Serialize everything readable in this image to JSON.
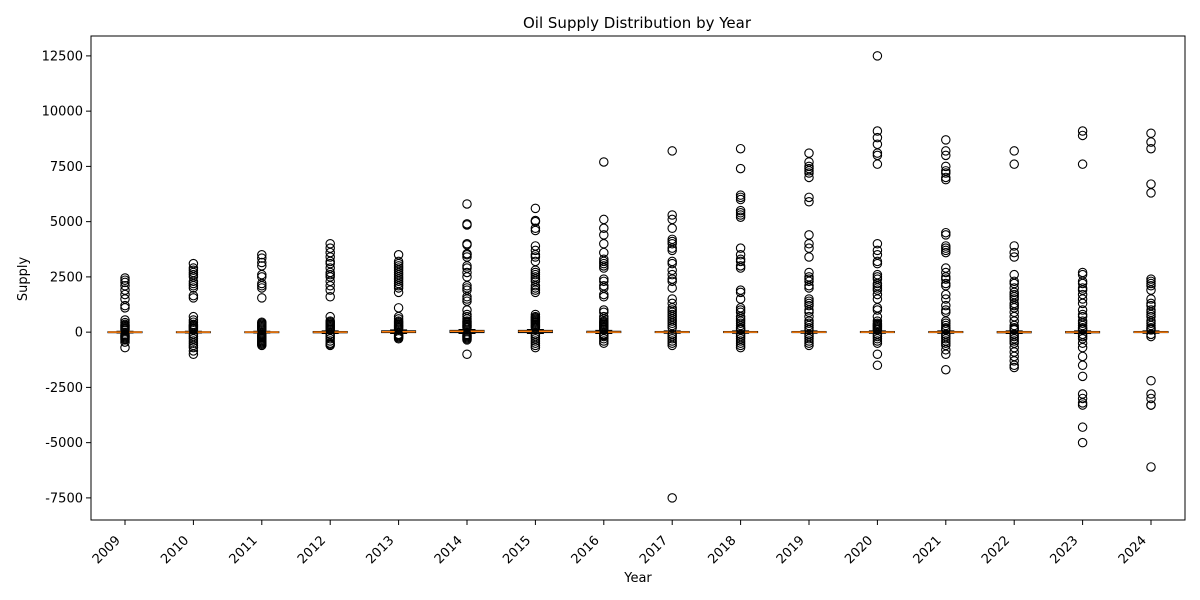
{
  "chart_data": {
    "type": "boxplot",
    "title": "Oil Supply Distribution by Year",
    "xlabel": "Year",
    "ylabel": "Supply",
    "ylim": [
      -8500,
      13400
    ],
    "yticks": [
      -7500,
      -5000,
      -2500,
      0,
      2500,
      5000,
      7500,
      10000,
      12500
    ],
    "grid": false,
    "colors": {
      "median": "#ff7f0e",
      "box": "#000000",
      "flier": "#000000"
    },
    "categories": [
      "2009",
      "2010",
      "2011",
      "2012",
      "2013",
      "2014",
      "2015",
      "2016",
      "2017",
      "2018",
      "2019",
      "2020",
      "2021",
      "2022",
      "2023",
      "2024"
    ],
    "series": [
      {
        "year": "2009",
        "q1": -20,
        "median": 0,
        "q3": 20,
        "whisker_low": -40,
        "whisker_high": 40,
        "fliers": [
          2450,
          2350,
          2250,
          2100,
          1900,
          1700,
          1500,
          1200,
          1100,
          550,
          430,
          350,
          300,
          250,
          200,
          150,
          100,
          -100,
          -150,
          -200,
          -250,
          -300,
          -350,
          -450,
          -700
        ]
      },
      {
        "year": "2010",
        "q1": -20,
        "median": 0,
        "q3": 20,
        "whisker_low": -40,
        "whisker_high": 40,
        "fliers": [
          3100,
          2900,
          2800,
          2700,
          2600,
          2500,
          2300,
          2200,
          2100,
          2000,
          1650,
          1550,
          700,
          550,
          450,
          350,
          300,
          250,
          200,
          150,
          100,
          -100,
          -200,
          -300,
          -400,
          -500,
          -600,
          -700,
          -850,
          -1000
        ]
      },
      {
        "year": "2011",
        "q1": -20,
        "median": 0,
        "q3": 20,
        "whisker_low": -40,
        "whisker_high": 40,
        "fliers": [
          3500,
          3350,
          3150,
          3000,
          2600,
          2500,
          2200,
          2100,
          2000,
          1550,
          450,
          400,
          350,
          300,
          250,
          200,
          150,
          100,
          -100,
          -150,
          -200,
          -250,
          -300,
          -350,
          -400,
          -450,
          -500,
          -550,
          -600
        ]
      },
      {
        "year": "2012",
        "q1": -30,
        "median": 0,
        "q3": 30,
        "whisker_low": -60,
        "whisker_high": 60,
        "fliers": [
          4000,
          3800,
          3600,
          3400,
          3200,
          3100,
          2900,
          2700,
          2600,
          2500,
          2300,
          2100,
          1900,
          1600,
          700,
          500,
          450,
          400,
          350,
          300,
          250,
          200,
          150,
          100,
          -100,
          -200,
          -300,
          -400,
          -500,
          -550,
          -600
        ]
      },
      {
        "year": "2013",
        "q1": -20,
        "median": 20,
        "q3": 60,
        "whisker_low": -60,
        "whisker_high": 100,
        "fliers": [
          3500,
          3200,
          3100,
          3000,
          2900,
          2800,
          2700,
          2600,
          2500,
          2400,
          2300,
          2200,
          2100,
          2000,
          1800,
          1100,
          700,
          600,
          500,
          450,
          400,
          350,
          300,
          250,
          200,
          150,
          -100,
          -150,
          -200,
          -250,
          -300
        ]
      },
      {
        "year": "2014",
        "q1": -20,
        "median": 40,
        "q3": 80,
        "whisker_low": -60,
        "whisker_high": 120,
        "fliers": [
          5800,
          4900,
          4850,
          4000,
          3950,
          3550,
          3500,
          3400,
          3000,
          2900,
          2700,
          2500,
          2100,
          2000,
          1900,
          1600,
          1500,
          1400,
          1000,
          800,
          700,
          600,
          500,
          450,
          400,
          350,
          300,
          250,
          200,
          -100,
          -150,
          -200,
          -250,
          -300,
          -350,
          -1000
        ]
      },
      {
        "year": "2015",
        "q1": -20,
        "median": 40,
        "q3": 80,
        "whisker_low": -60,
        "whisker_high": 120,
        "fliers": [
          5600,
          5050,
          5000,
          4700,
          4600,
          3900,
          3700,
          3500,
          3400,
          3200,
          2800,
          2700,
          2600,
          2500,
          2400,
          2300,
          2100,
          2000,
          1900,
          1800,
          800,
          700,
          650,
          600,
          550,
          500,
          450,
          400,
          350,
          300,
          250,
          200,
          -100,
          -200,
          -300,
          -400,
          -500,
          -600,
          -700
        ]
      },
      {
        "year": "2016",
        "q1": -20,
        "median": 0,
        "q3": 40,
        "whisker_low": -60,
        "whisker_high": 80,
        "fliers": [
          7700,
          5100,
          4700,
          4400,
          4000,
          3600,
          3300,
          3200,
          3100,
          3000,
          2900,
          2400,
          2300,
          2100,
          2000,
          1700,
          1600,
          1000,
          900,
          700,
          600,
          500,
          450,
          400,
          350,
          300,
          250,
          200,
          150,
          100,
          -100,
          -150,
          -200,
          -300,
          -400,
          -500
        ]
      },
      {
        "year": "2017",
        "q1": -20,
        "median": 0,
        "q3": 30,
        "whisker_low": -50,
        "whisker_high": 60,
        "fliers": [
          8200,
          5300,
          5100,
          4700,
          4200,
          4100,
          4000,
          3800,
          3700,
          3200,
          3100,
          2800,
          2600,
          2400,
          2300,
          2000,
          1500,
          1300,
          1100,
          1000,
          900,
          800,
          700,
          600,
          500,
          400,
          300,
          200,
          -100,
          -200,
          -300,
          -400,
          -500,
          -600,
          -7500
        ]
      },
      {
        "year": "2018",
        "q1": -20,
        "median": 0,
        "q3": 30,
        "whisker_low": -50,
        "whisker_high": 60,
        "fliers": [
          8300,
          7400,
          6200,
          6100,
          6000,
          5500,
          5400,
          5300,
          5200,
          3800,
          3500,
          3300,
          3200,
          3000,
          2900,
          1900,
          1800,
          1500,
          1100,
          1000,
          900,
          700,
          600,
          500,
          400,
          300,
          200,
          150,
          100,
          -100,
          -200,
          -300,
          -400,
          -500,
          -600,
          -700
        ]
      },
      {
        "year": "2019",
        "q1": -20,
        "median": 0,
        "q3": 30,
        "whisker_low": -50,
        "whisker_high": 60,
        "fliers": [
          8100,
          7700,
          7500,
          7400,
          7300,
          7200,
          7000,
          6100,
          5900,
          4400,
          4000,
          3800,
          3400,
          2700,
          2500,
          2400,
          2300,
          2100,
          2000,
          1500,
          1400,
          1300,
          1200,
          1000,
          900,
          700,
          500,
          400,
          300,
          200,
          100,
          -100,
          -200,
          -300,
          -400,
          -500,
          -600
        ]
      },
      {
        "year": "2020",
        "q1": -20,
        "median": 0,
        "q3": 30,
        "whisker_low": -50,
        "whisker_high": 60,
        "fliers": [
          12500,
          9100,
          8800,
          8500,
          8100,
          8000,
          7600,
          4000,
          3700,
          3500,
          3200,
          3100,
          2600,
          2500,
          2400,
          2200,
          2100,
          2000,
          1900,
          1700,
          1500,
          1100,
          1000,
          700,
          500,
          400,
          350,
          300,
          250,
          200,
          150,
          100,
          -100,
          -200,
          -300,
          -400,
          -500,
          -1000,
          -1500
        ]
      },
      {
        "year": "2021",
        "q1": -20,
        "median": 0,
        "q3": 30,
        "whisker_low": -50,
        "whisker_high": 60,
        "fliers": [
          8700,
          8200,
          8000,
          7500,
          7300,
          7200,
          7000,
          6900,
          4500,
          4400,
          3900,
          3800,
          3700,
          3600,
          2900,
          2700,
          2500,
          2400,
          2200,
          2100,
          1700,
          1500,
          1200,
          1000,
          900,
          500,
          400,
          300,
          200,
          150,
          100,
          -100,
          -200,
          -300,
          -400,
          -500,
          -600,
          -800,
          -1000,
          -1700
        ]
      },
      {
        "year": "2022",
        "q1": -30,
        "median": 0,
        "q3": 30,
        "whisker_low": -60,
        "whisker_high": 60,
        "fliers": [
          8200,
          7600,
          3900,
          3600,
          3400,
          2600,
          2300,
          2200,
          2000,
          1800,
          1700,
          1600,
          1500,
          1300,
          1200,
          1100,
          900,
          700,
          500,
          300,
          200,
          150,
          100,
          -100,
          -200,
          -300,
          -400,
          -500,
          -700,
          -900,
          -1100,
          -1300,
          -1500,
          -1600
        ]
      },
      {
        "year": "2023",
        "q1": -30,
        "median": 0,
        "q3": 30,
        "whisker_low": -60,
        "whisker_high": 60,
        "fliers": [
          9100,
          8900,
          7600,
          2700,
          2600,
          2300,
          2200,
          2000,
          1900,
          1700,
          1500,
          1300,
          1000,
          800,
          700,
          500,
          400,
          300,
          200,
          150,
          100,
          -100,
          -200,
          -300,
          -500,
          -700,
          -1100,
          -1500,
          -2000,
          -2800,
          -3000,
          -3200,
          -3300,
          -4300,
          -5000
        ]
      },
      {
        "year": "2024",
        "q1": -20,
        "median": 0,
        "q3": 30,
        "whisker_low": -50,
        "whisker_high": 60,
        "fliers": [
          9000,
          8600,
          8300,
          6700,
          6300,
          2400,
          2300,
          2200,
          2100,
          1900,
          1500,
          1300,
          1200,
          1000,
          900,
          800,
          700,
          500,
          400,
          300,
          200,
          150,
          100,
          -100,
          -200,
          -2200,
          -2800,
          -3000,
          -3300,
          -3300,
          -6100
        ]
      }
    ]
  }
}
